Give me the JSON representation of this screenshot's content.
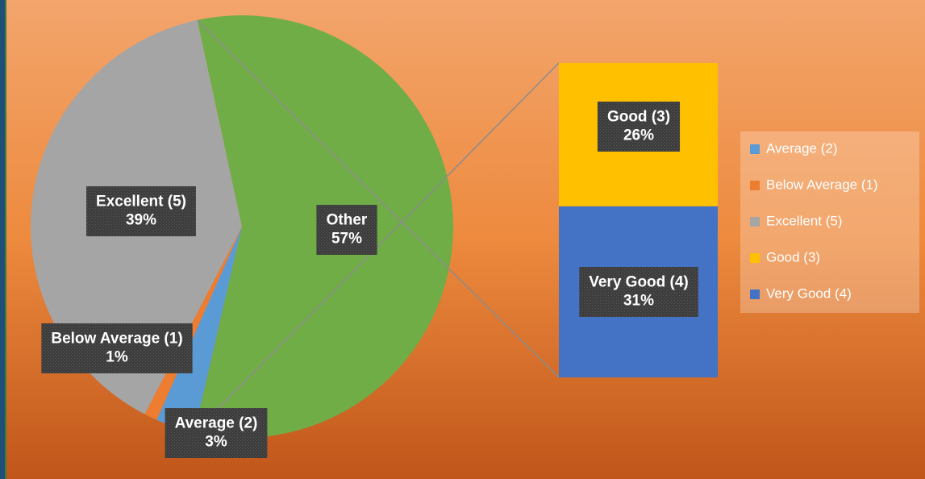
{
  "chart_data": {
    "type": "pie",
    "categories": [
      "Average (2)",
      "Below Average (1)",
      "Excellent (5)",
      "Other"
    ],
    "values": [
      3,
      1,
      39,
      57
    ],
    "value_labels": [
      "3%",
      "1%",
      "39%",
      "57%"
    ],
    "colors": [
      "#5b9bd5",
      "#ed7d31",
      "#a5a5a5",
      "#70ad47"
    ],
    "bar": {
      "categories": [
        "Good (3)",
        "Very Good (4)"
      ],
      "values": [
        26,
        31
      ],
      "value_labels": [
        "26%",
        "31%"
      ],
      "colors": [
        "#ffc000",
        "#4472c4"
      ]
    },
    "legend": "right"
  }
}
